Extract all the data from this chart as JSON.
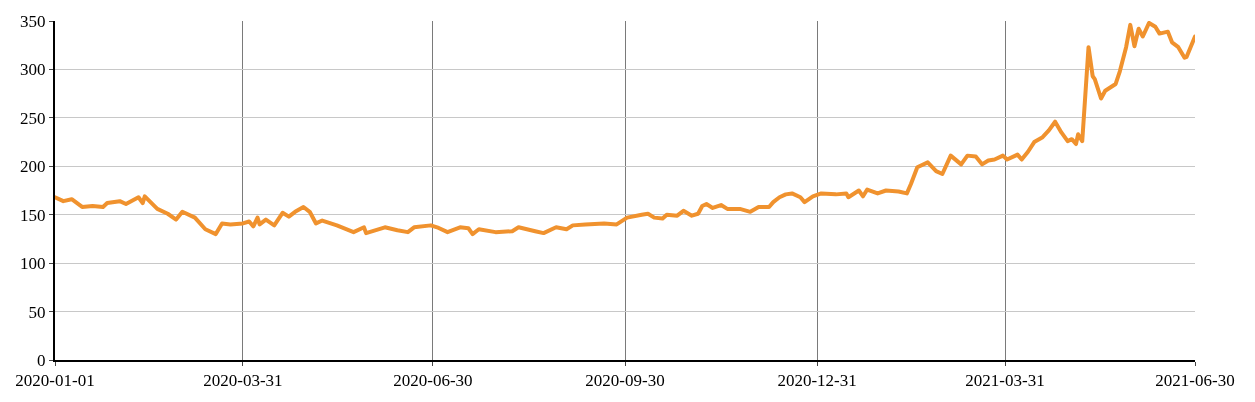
{
  "chart_data": {
    "type": "line",
    "x": [
      "2020-01-01",
      "2020-01-05",
      "2020-01-09",
      "2020-01-14",
      "2020-01-19",
      "2020-01-24",
      "2020-01-26",
      "2020-02-01",
      "2020-02-04",
      "2020-02-10",
      "2020-02-12",
      "2020-02-13",
      "2020-02-19",
      "2020-02-24",
      "2020-02-28",
      "2020-03-02",
      "2020-03-08",
      "2020-03-13",
      "2020-03-18",
      "2020-03-21",
      "2020-03-25",
      "2020-03-31",
      "2020-04-03",
      "2020-04-05",
      "2020-04-07",
      "2020-04-08",
      "2020-04-11",
      "2020-04-15",
      "2020-04-19",
      "2020-04-22",
      "2020-04-25",
      "2020-04-29",
      "2020-05-02",
      "2020-05-05",
      "2020-05-08",
      "2020-05-15",
      "2020-05-23",
      "2020-05-28",
      "2020-05-29",
      "2020-06-07",
      "2020-06-13",
      "2020-06-18",
      "2020-06-21",
      "2020-06-29",
      "2020-07-02",
      "2020-07-07",
      "2020-07-13",
      "2020-07-17",
      "2020-07-19",
      "2020-07-22",
      "2020-07-30",
      "2020-08-07",
      "2020-08-10",
      "2020-08-18",
      "2020-08-22",
      "2020-08-28",
      "2020-09-02",
      "2020-09-05",
      "2020-09-11",
      "2020-09-20",
      "2020-09-26",
      "2020-10-01",
      "2020-10-08",
      "2020-10-11",
      "2020-10-14",
      "2020-10-18",
      "2020-10-20",
      "2020-10-25",
      "2020-10-28",
      "2020-11-01",
      "2020-11-04",
      "2020-11-06",
      "2020-11-08",
      "2020-11-11",
      "2020-11-15",
      "2020-11-18",
      "2020-11-24",
      "2020-11-29",
      "2020-12-03",
      "2020-12-08",
      "2020-12-10",
      "2020-12-13",
      "2020-12-16",
      "2020-12-19",
      "2020-12-23",
      "2020-12-25",
      "2020-12-29",
      "2021-01-02",
      "2021-01-09",
      "2021-01-14",
      "2021-01-15",
      "2021-01-20",
      "2021-01-22",
      "2021-01-24",
      "2021-01-29",
      "2021-02-02",
      "2021-02-08",
      "2021-02-12",
      "2021-02-14",
      "2021-02-17",
      "2021-02-22",
      "2021-02-26",
      "2021-03-01",
      "2021-03-05",
      "2021-03-10",
      "2021-03-13",
      "2021-03-17",
      "2021-03-20",
      "2021-03-23",
      "2021-03-26",
      "2021-03-30",
      "2021-04-01",
      "2021-04-06",
      "2021-04-08",
      "2021-04-11",
      "2021-04-14",
      "2021-04-18",
      "2021-04-21",
      "2021-04-24",
      "2021-04-27",
      "2021-04-30",
      "2021-05-02",
      "2021-05-04",
      "2021-05-05",
      "2021-05-07",
      "2021-05-10",
      "2021-05-12",
      "2021-05-13",
      "2021-05-16",
      "2021-05-18",
      "2021-05-23",
      "2021-05-25",
      "2021-05-28",
      "2021-05-30",
      "2021-06-01",
      "2021-06-03",
      "2021-06-05",
      "2021-06-08",
      "2021-06-11",
      "2021-06-13",
      "2021-06-17",
      "2021-06-19",
      "2021-06-22",
      "2021-06-25",
      "2021-06-26",
      "2021-06-30"
    ],
    "series": [
      {
        "color": "#f0922e",
        "values": [
          168,
          164,
          166,
          158,
          159,
          158,
          162,
          164,
          161,
          168,
          162,
          169,
          156,
          151,
          145,
          153,
          147,
          135,
          130,
          141,
          140,
          141,
          143,
          138,
          147,
          140,
          145,
          139,
          152,
          148,
          153,
          158,
          153,
          141,
          144,
          139,
          132,
          137,
          131,
          137,
          134,
          132,
          137,
          139,
          137,
          132,
          137,
          136,
          130,
          135,
          132,
          133,
          137,
          133,
          131,
          137,
          135,
          139,
          140,
          141,
          140,
          147,
          150,
          151,
          147,
          146,
          150,
          149,
          154,
          149,
          151,
          159,
          161,
          157,
          160,
          156,
          156,
          153,
          158,
          158,
          163,
          168,
          171,
          172,
          168,
          163,
          169,
          172,
          171,
          172,
          168,
          175,
          169,
          176,
          172,
          175,
          174,
          172,
          182,
          199,
          204,
          195,
          192,
          211,
          202,
          211,
          210,
          202,
          206,
          207,
          211,
          207,
          212,
          207,
          215,
          225,
          230,
          237,
          246,
          235,
          226,
          228,
          223,
          233,
          226,
          323,
          293,
          290,
          270,
          278,
          285,
          298,
          323,
          346,
          324,
          342,
          334,
          348,
          344,
          337,
          339,
          328,
          323,
          312,
          313,
          334
        ]
      }
    ],
    "xlim": [
      "2020-01-01",
      "2021-06-30"
    ],
    "xticks": [
      "2020-01-01",
      "2020-03-31",
      "2020-06-30",
      "2020-09-30",
      "2020-12-31",
      "2021-03-31",
      "2021-06-30"
    ],
    "ylim": [
      0,
      350
    ],
    "yticks": [
      0,
      50,
      100,
      150,
      200,
      250,
      300,
      350
    ],
    "grid": true,
    "legend": false,
    "marker": "none",
    "line_style": "solid"
  }
}
